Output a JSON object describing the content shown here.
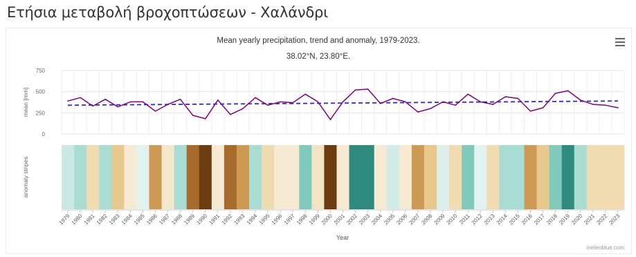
{
  "page": {
    "title": "Ετήσια μεταβολή βροχοπτώσεων - Χαλάνδρι"
  },
  "chart": {
    "menu_icon": "hamburger-menu-icon",
    "credit": "meteoblue.com"
  },
  "chart_data": {
    "type": "line",
    "title": "Mean yearly precipitation, trend and anomaly, 1979-2023.",
    "subtitle": "38.02°N, 23.80°E.",
    "xlabel": "Year",
    "ylabel": "mean [mm]",
    "stripes_label": "anomaly stripes",
    "ylim": [
      0,
      750
    ],
    "yticks": [
      "750",
      "500",
      "250",
      "0"
    ],
    "grid": true,
    "categories": [
      "1979",
      "1980",
      "1981",
      "1982",
      "1983",
      "1984",
      "1985",
      "1986",
      "1987",
      "1988",
      "1989",
      "1990",
      "1991",
      "1992",
      "1993",
      "1994",
      "1995",
      "1996",
      "1997",
      "1998",
      "1999",
      "2000",
      "2001",
      "2002",
      "2003",
      "2004",
      "2005",
      "2006",
      "2007",
      "2008",
      "2009",
      "2010",
      "2011",
      "2012",
      "2013",
      "2014",
      "2015",
      "2016",
      "2017",
      "2018",
      "2019",
      "2020",
      "2021",
      "2022",
      "2023"
    ],
    "series": [
      {
        "values": [
          390,
          430,
          330,
          410,
          320,
          380,
          380,
          270,
          350,
          410,
          220,
          180,
          400,
          230,
          300,
          430,
          340,
          380,
          370,
          470,
          380,
          170,
          380,
          520,
          530,
          360,
          420,
          380,
          260,
          300,
          380,
          340,
          470,
          380,
          350,
          440,
          420,
          270,
          310,
          480,
          510,
          400,
          350,
          340,
          310
        ],
        "color": "#800080"
      }
    ],
    "trend": {
      "start": 340,
      "end": 390,
      "color": "#2b2bcc",
      "style": "dashed"
    },
    "anomaly_stripes": {
      "colors": [
        "#c9e9e3",
        "#a9ddd4",
        "#f0dcae",
        "#a9ddd4",
        "#e8c98d",
        "#f6ebd2",
        "#e2f2ee",
        "#cc9a52",
        "#f4e8cc",
        "#a9ddd4",
        "#a86b2c",
        "#6b3c10",
        "#f6ebd2",
        "#a86b2c",
        "#cc9a52",
        "#a9ddd4",
        "#efdbb0",
        "#f6ebd2",
        "#f6ebd2",
        "#7fcabd",
        "#f2e4c2",
        "#6b3c10",
        "#f6ebd2",
        "#2e8b7e",
        "#2e8b7e",
        "#f6ebd2",
        "#cfece6",
        "#f6ebd2",
        "#cc9a52",
        "#e8c98d",
        "#dcefeb",
        "#f0dcae",
        "#7fcabd",
        "#e2f2ee",
        "#f0dcae",
        "#a9ddd4",
        "#a9ddd4",
        "#cc9a52",
        "#e8c98d",
        "#7fcabd",
        "#2e8b7e",
        "#a9ddd4",
        "#f0dcae",
        "#f0dcae",
        "#f0dcae"
      ]
    }
  }
}
